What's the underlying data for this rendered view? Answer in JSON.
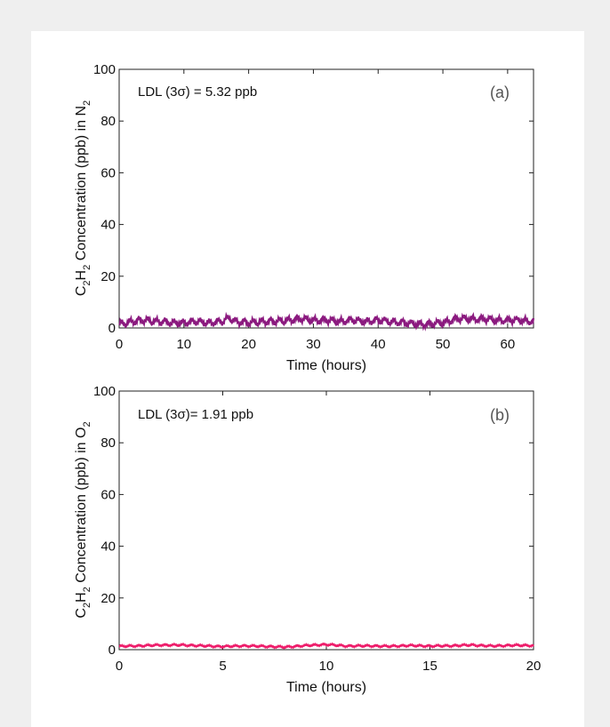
{
  "chart_data": [
    {
      "type": "line",
      "panel_label": "(a)",
      "annotation": "LDL (3σ) = 5.32 ppb",
      "xlabel": "Time (hours)",
      "ylabel": {
        "c": "C",
        "sub1": "2",
        "h": "H",
        "sub2": "2",
        "mid": " Concentration (ppb) in N",
        "sub3": "2"
      },
      "xlim": [
        0,
        64
      ],
      "ylim": [
        0,
        100
      ],
      "xticks": [
        "0",
        "10",
        "20",
        "30",
        "40",
        "50",
        "60"
      ],
      "yticks": [
        "0",
        "20",
        "40",
        "60",
        "80",
        "100"
      ],
      "grid": false,
      "color": "#8b1a7f",
      "series": [
        {
          "x": [
            0,
            2,
            4,
            6,
            8,
            10,
            12,
            14,
            16,
            17,
            18,
            20,
            22,
            24,
            26,
            28,
            30,
            32,
            34,
            36,
            38,
            40,
            42,
            44,
            46,
            48,
            50,
            52,
            54,
            56,
            58,
            60,
            62,
            64
          ],
          "y": [
            1.5,
            2.5,
            3.0,
            2.5,
            2.0,
            2.0,
            2.5,
            2.0,
            2.5,
            4.0,
            2.5,
            2.0,
            2.5,
            2.5,
            3.0,
            3.5,
            3.0,
            3.0,
            2.5,
            3.0,
            2.5,
            3.0,
            2.5,
            2.0,
            1.5,
            1.5,
            2.0,
            3.5,
            3.5,
            3.5,
            3.0,
            3.0,
            3.0,
            2.5
          ]
        }
      ]
    },
    {
      "type": "line",
      "panel_label": "(b)",
      "annotation": "LDL (3σ)= 1.91 ppb",
      "xlabel": "Time (hours)",
      "ylabel": {
        "c": "C",
        "sub1": "2",
        "h": "H",
        "sub2": "2",
        "mid": " Concentration (ppb) in O",
        "sub3": "2"
      },
      "xlim": [
        0,
        20
      ],
      "ylim": [
        0,
        100
      ],
      "xticks": [
        "0",
        "5",
        "10",
        "15",
        "20"
      ],
      "yticks": [
        "0",
        "20",
        "40",
        "60",
        "80",
        "100"
      ],
      "grid": false,
      "color": "#ee1c6a",
      "series": [
        {
          "x": [
            0,
            1,
            2,
            3,
            4,
            5,
            6,
            7,
            8,
            9,
            10,
            11,
            12,
            13,
            14,
            15,
            16,
            17,
            18,
            19,
            20
          ],
          "y": [
            1.3,
            1.5,
            1.8,
            1.8,
            1.5,
            1.2,
            1.5,
            1.3,
            1.0,
            1.6,
            2.0,
            1.4,
            1.5,
            1.3,
            1.6,
            1.4,
            1.5,
            1.8,
            1.4,
            1.7,
            1.6
          ]
        }
      ]
    }
  ]
}
